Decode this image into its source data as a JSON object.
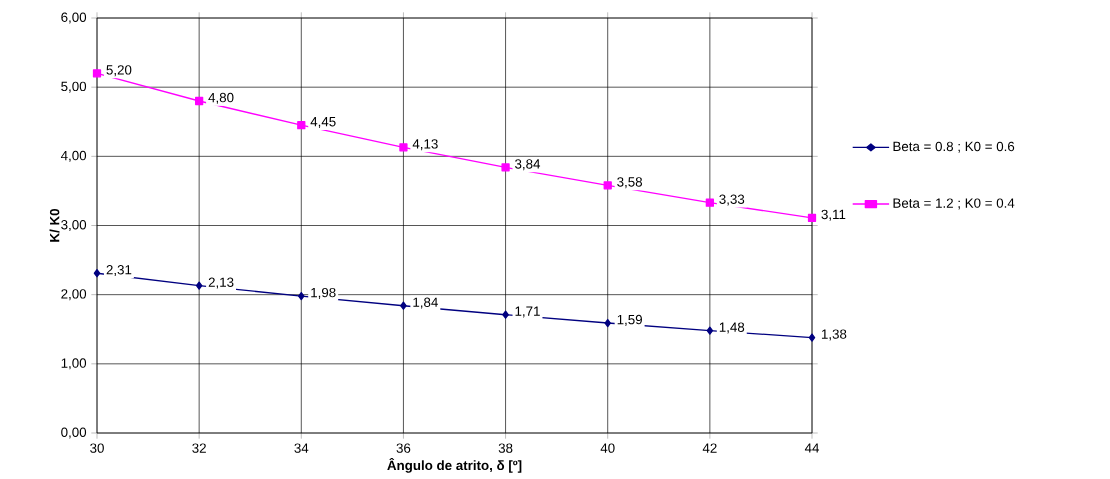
{
  "chart_data": {
    "type": "line",
    "xlabel": "Ângulo de atrito, δ [º]",
    "ylabel": "K/ K0",
    "x": [
      30,
      32,
      34,
      36,
      38,
      40,
      42,
      44
    ],
    "series": [
      {
        "name": "Beta = 0.8 ; K0 = 0.6",
        "color": "#000080",
        "marker": "diamond",
        "values": [
          2.31,
          2.13,
          1.98,
          1.84,
          1.71,
          1.59,
          1.48,
          1.38
        ],
        "value_labels": [
          "2,31",
          "2,13",
          "1,98",
          "1,84",
          "1,71",
          "1,59",
          "1,48",
          "1,38"
        ]
      },
      {
        "name": "Beta = 1.2 ; K0 = 0.4",
        "color": "#ff00ff",
        "marker": "square",
        "values": [
          5.2,
          4.8,
          4.45,
          4.13,
          3.84,
          3.58,
          3.33,
          3.11
        ],
        "value_labels": [
          "5,20",
          "4,80",
          "4,45",
          "4,13",
          "3,84",
          "3,58",
          "3,33",
          "3,11"
        ]
      }
    ],
    "xlim": [
      30,
      44
    ],
    "xticks": [
      30,
      32,
      34,
      36,
      38,
      40,
      42,
      44
    ],
    "ylim": [
      0,
      6
    ],
    "yticks": [
      {
        "value": 0,
        "label": "0,00"
      },
      {
        "value": 1,
        "label": "1,00"
      },
      {
        "value": 2,
        "label": "2,00"
      },
      {
        "value": 3,
        "label": "3,00"
      },
      {
        "value": 4,
        "label": "4,00"
      },
      {
        "value": 5,
        "label": "5,00"
      },
      {
        "value": 6,
        "label": "6,00"
      }
    ],
    "grid": true,
    "legend": "right",
    "line_style": "solid"
  }
}
